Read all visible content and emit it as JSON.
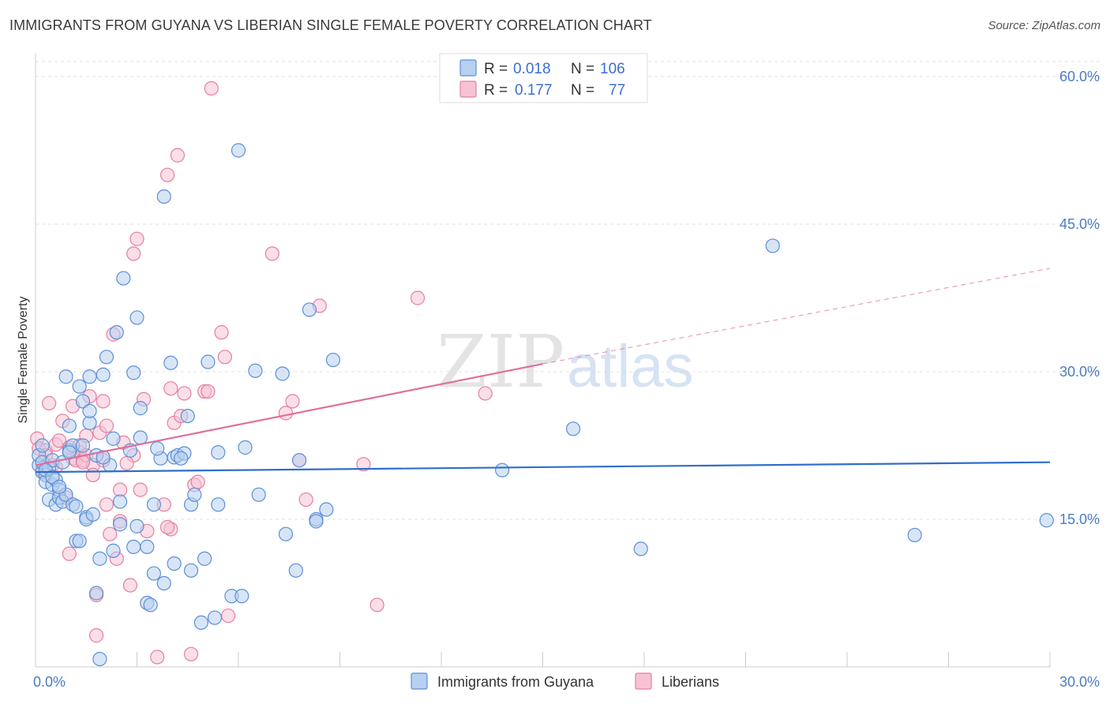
{
  "title": "IMMIGRANTS FROM GUYANA VS LIBERIAN SINGLE FEMALE POVERTY CORRELATION CHART",
  "source": "Source: ZipAtlas.com",
  "watermark": {
    "zip": "ZIP",
    "atlas": "atlas"
  },
  "colors": {
    "blue": "#5b8fd6",
    "blue_fill": "#b8d0f0",
    "pink": "#e57fa0",
    "pink_fill": "#f6c3d5",
    "blue_line": "#2f6fc9",
    "pink_line": "#e0709a"
  },
  "legend": {
    "rows": [
      {
        "r_label": "R =",
        "r_value": "0.018",
        "n_label": "N =",
        "n_value": "106"
      },
      {
        "r_label": "R =",
        "r_value": "0.177",
        "n_label": "N =",
        "n_value": "77"
      }
    ]
  },
  "bottom_legend": [
    "Immigrants from Guyana",
    "Liberians"
  ],
  "chart_data": {
    "type": "scatter",
    "xlabel": "",
    "ylabel": "Single Female Poverty",
    "xlim": [
      0,
      30
    ],
    "ylim": [
      0,
      60
    ],
    "x_tick_labels": [
      "0.0%",
      "30.0%"
    ],
    "y_ticks": [
      15,
      30,
      45,
      60
    ],
    "y_tick_labels": [
      "15.0%",
      "30.0%",
      "45.0%",
      "60.0%"
    ],
    "grid": true,
    "series": [
      {
        "name": "Immigrants from Guyana",
        "points": [
          [
            0.1,
            20.5
          ],
          [
            0.1,
            21.5
          ],
          [
            0.2,
            19.8
          ],
          [
            0.2,
            20.8
          ],
          [
            0.3,
            19.5
          ],
          [
            0.3,
            18.8
          ],
          [
            0.4,
            20.2
          ],
          [
            0.4,
            17.0
          ],
          [
            0.5,
            18.5
          ],
          [
            0.5,
            21.0
          ],
          [
            0.6,
            16.5
          ],
          [
            0.6,
            19.0
          ],
          [
            0.7,
            18.0
          ],
          [
            0.7,
            17.2
          ],
          [
            0.8,
            16.8
          ],
          [
            0.8,
            20.8
          ],
          [
            0.9,
            17.5
          ],
          [
            0.9,
            29.5
          ],
          [
            1.0,
            22.0
          ],
          [
            1.0,
            24.5
          ],
          [
            1.1,
            22.5
          ],
          [
            1.1,
            16.5
          ],
          [
            1.2,
            12.8
          ],
          [
            1.3,
            12.8
          ],
          [
            1.3,
            28.5
          ],
          [
            1.4,
            27.0
          ],
          [
            1.4,
            22.5
          ],
          [
            1.5,
            15.2
          ],
          [
            1.5,
            15.0
          ],
          [
            1.6,
            29.5
          ],
          [
            1.6,
            24.8
          ],
          [
            1.6,
            26.0
          ],
          [
            1.7,
            15.5
          ],
          [
            1.8,
            21.5
          ],
          [
            1.8,
            7.5
          ],
          [
            1.9,
            0.8
          ],
          [
            1.9,
            11.0
          ],
          [
            2.0,
            29.7
          ],
          [
            2.1,
            31.5
          ],
          [
            2.2,
            20.5
          ],
          [
            2.3,
            11.8
          ],
          [
            2.3,
            23.2
          ],
          [
            2.4,
            34.0
          ],
          [
            2.5,
            16.8
          ],
          [
            2.5,
            14.5
          ],
          [
            2.6,
            39.5
          ],
          [
            2.8,
            22.0
          ],
          [
            2.9,
            29.9
          ],
          [
            2.9,
            12.2
          ],
          [
            3.0,
            35.5
          ],
          [
            3.0,
            14.3
          ],
          [
            3.1,
            26.3
          ],
          [
            3.1,
            23.3
          ],
          [
            3.3,
            6.5
          ],
          [
            3.3,
            12.2
          ],
          [
            3.4,
            6.3
          ],
          [
            3.5,
            16.5
          ],
          [
            3.5,
            9.5
          ],
          [
            3.7,
            21.2
          ],
          [
            3.8,
            8.5
          ],
          [
            3.8,
            47.8
          ],
          [
            4.0,
            30.9
          ],
          [
            4.1,
            21.3
          ],
          [
            4.1,
            10.5
          ],
          [
            4.2,
            21.5
          ],
          [
            4.4,
            21.7
          ],
          [
            4.5,
            25.5
          ],
          [
            4.6,
            16.5
          ],
          [
            4.6,
            9.8
          ],
          [
            4.7,
            17.5
          ],
          [
            4.9,
            4.5
          ],
          [
            5.0,
            11.0
          ],
          [
            5.1,
            31.0
          ],
          [
            5.3,
            5.0
          ],
          [
            5.4,
            21.8
          ],
          [
            5.4,
            16.5
          ],
          [
            5.8,
            7.2
          ],
          [
            6.0,
            52.5
          ],
          [
            6.1,
            7.2
          ],
          [
            6.2,
            22.3
          ],
          [
            6.5,
            30.1
          ],
          [
            6.6,
            17.5
          ],
          [
            7.3,
            29.8
          ],
          [
            7.4,
            13.5
          ],
          [
            7.7,
            9.8
          ],
          [
            7.8,
            21.0
          ],
          [
            8.1,
            36.3
          ],
          [
            8.3,
            15.0
          ],
          [
            8.3,
            14.8
          ],
          [
            8.6,
            16.0
          ],
          [
            8.8,
            31.2
          ],
          [
            13.8,
            20.0
          ],
          [
            15.9,
            24.2
          ],
          [
            17.9,
            12.0
          ],
          [
            21.8,
            42.8
          ],
          [
            26.0,
            13.4
          ],
          [
            29.9,
            14.9
          ],
          [
            0.2,
            22.5
          ],
          [
            0.3,
            20.0
          ],
          [
            0.5,
            19.3
          ],
          [
            0.7,
            18.3
          ],
          [
            1.0,
            21.8
          ],
          [
            1.2,
            16.3
          ],
          [
            2.0,
            21.3
          ],
          [
            3.6,
            22.2
          ],
          [
            4.3,
            21.2
          ]
        ]
      },
      {
        "name": "Liberians",
        "points": [
          [
            0.05,
            23.2
          ],
          [
            0.1,
            22.2
          ],
          [
            0.2,
            20.8
          ],
          [
            0.3,
            22.0
          ],
          [
            0.4,
            26.8
          ],
          [
            0.5,
            20.5
          ],
          [
            0.6,
            22.6
          ],
          [
            0.7,
            23.0
          ],
          [
            0.8,
            25.0
          ],
          [
            0.9,
            17.2
          ],
          [
            1.0,
            11.5
          ],
          [
            1.1,
            26.5
          ],
          [
            1.1,
            21.2
          ],
          [
            1.2,
            21.0
          ],
          [
            1.3,
            21.8
          ],
          [
            1.3,
            22.5
          ],
          [
            1.4,
            21.0
          ],
          [
            1.5,
            21.5
          ],
          [
            1.5,
            23.5
          ],
          [
            1.6,
            27.5
          ],
          [
            1.7,
            20.5
          ],
          [
            1.7,
            19.5
          ],
          [
            1.8,
            3.2
          ],
          [
            1.8,
            7.3
          ],
          [
            1.9,
            23.8
          ],
          [
            2.0,
            27.0
          ],
          [
            2.0,
            21.0
          ],
          [
            2.1,
            24.5
          ],
          [
            2.2,
            13.5
          ],
          [
            2.3,
            33.8
          ],
          [
            2.4,
            11.0
          ],
          [
            2.5,
            18.0
          ],
          [
            2.6,
            22.8
          ],
          [
            2.8,
            8.3
          ],
          [
            2.9,
            42.0
          ],
          [
            2.9,
            21.5
          ],
          [
            3.0,
            43.5
          ],
          [
            3.1,
            18.0
          ],
          [
            3.2,
            27.2
          ],
          [
            3.6,
            1.0
          ],
          [
            3.8,
            16.5
          ],
          [
            3.9,
            50.0
          ],
          [
            4.0,
            28.3
          ],
          [
            4.0,
            14.0
          ],
          [
            4.1,
            24.8
          ],
          [
            4.2,
            52.0
          ],
          [
            4.3,
            25.5
          ],
          [
            4.4,
            27.8
          ],
          [
            4.6,
            1.3
          ],
          [
            4.7,
            18.5
          ],
          [
            5.0,
            28.0
          ],
          [
            5.1,
            28.0
          ],
          [
            5.2,
            58.8
          ],
          [
            5.5,
            34.0
          ],
          [
            5.6,
            31.5
          ],
          [
            5.7,
            5.2
          ],
          [
            7.0,
            42.0
          ],
          [
            7.4,
            25.8
          ],
          [
            7.6,
            27.0
          ],
          [
            7.8,
            21.0
          ],
          [
            8.0,
            17.0
          ],
          [
            8.4,
            36.7
          ],
          [
            9.7,
            20.6
          ],
          [
            10.1,
            6.3
          ],
          [
            11.3,
            37.5
          ],
          [
            13.3,
            27.8
          ],
          [
            0.3,
            21.5
          ],
          [
            0.6,
            20.3
          ],
          [
            1.0,
            22.3
          ],
          [
            1.4,
            20.8
          ],
          [
            2.1,
            16.5
          ],
          [
            2.5,
            14.8
          ],
          [
            3.3,
            13.8
          ],
          [
            3.9,
            14.2
          ],
          [
            4.8,
            18.8
          ],
          [
            2.7,
            20.7
          ],
          [
            0.2,
            20.0
          ]
        ]
      }
    ],
    "trend_lines": [
      {
        "series": "Immigrants from Guyana",
        "x": [
          0,
          30
        ],
        "y": [
          19.8,
          20.8
        ]
      },
      {
        "series": "Liberians",
        "x": [
          0,
          15
        ],
        "y": [
          20.5,
          30.8
        ],
        "dashed_extension": {
          "x": [
            15,
            30
          ],
          "y": [
            30.8,
            40.5
          ]
        }
      }
    ]
  }
}
